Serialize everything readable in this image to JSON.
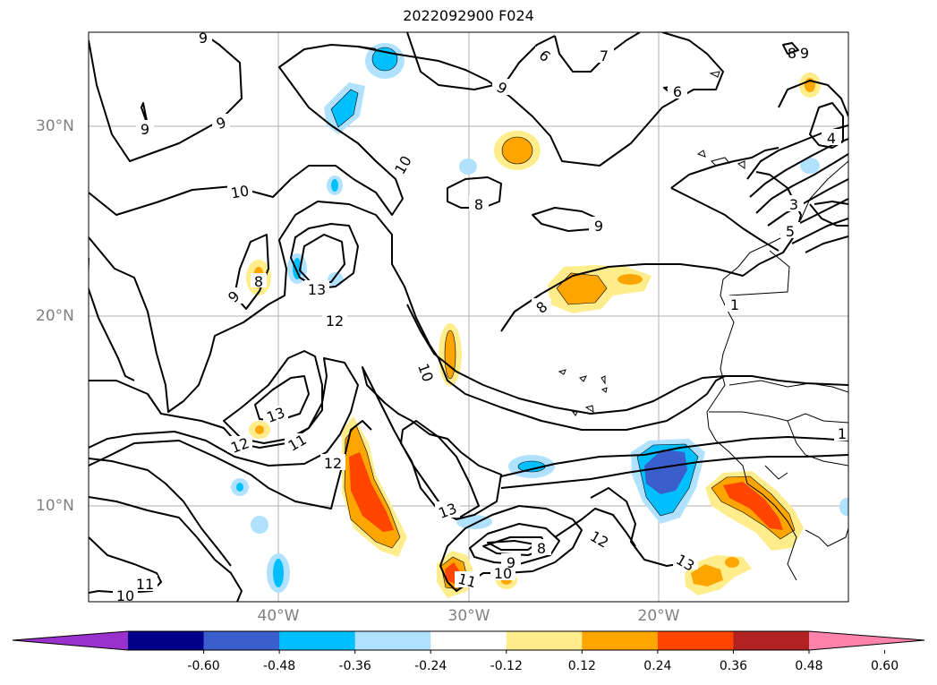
{
  "title": "2022092900 F024",
  "lat_labels": [
    "30°N",
    "20°N",
    "10°N"
  ],
  "lon_labels": [
    "40°W",
    "30°W",
    "20°W"
  ],
  "colorbar": {
    "ticks": [
      "-0.60",
      "-0.48",
      "-0.36",
      "-0.24",
      "-0.12",
      "0.12",
      "0.24",
      "0.36",
      "0.48",
      "0.60"
    ],
    "colors": [
      "#9932cc",
      "#00008b",
      "#3a5fcd",
      "#00bfff",
      "#b0e2ff",
      "#ffffff",
      "#ffec8b",
      "#ffa500",
      "#ff4500",
      "#b22222",
      "#ff82ab"
    ]
  },
  "contour_labels": [
    "9",
    "9",
    "9",
    "9",
    "6",
    "7",
    "6",
    "9",
    "8",
    "10",
    "8",
    "9",
    "10",
    "8",
    "13",
    "12",
    "9",
    "8",
    "10",
    "13",
    "12",
    "11",
    "12",
    "13",
    "9",
    "8",
    "10",
    "11",
    "12",
    "13",
    "11",
    "10",
    "4",
    "3",
    "5",
    "1",
    "1"
  ]
}
